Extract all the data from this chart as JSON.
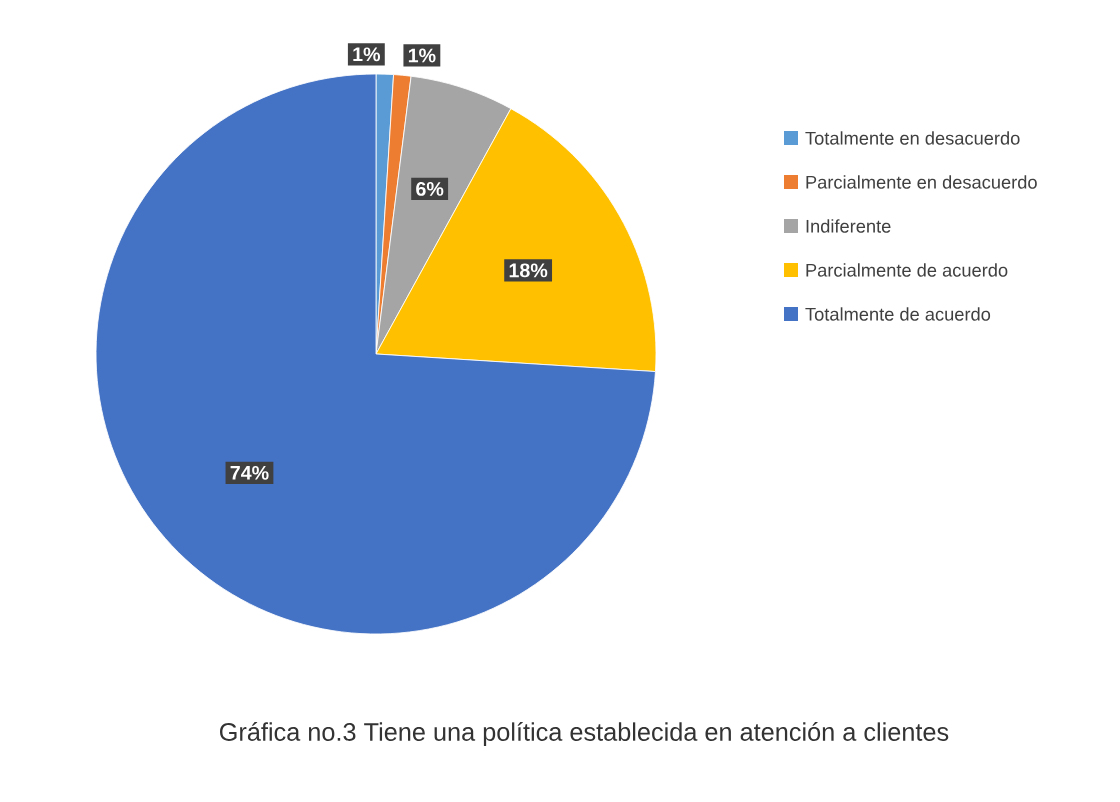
{
  "chart_data": {
    "type": "pie",
    "title": "Gráfica no.3 Tiene una política establecida en atención a clientes",
    "categories": [
      "Totalmente en desacuerdo",
      "Parcialmente en desacuerdo",
      "Indiferente",
      "Parcialmente de acuerdo",
      "Totalmente de acuerdo"
    ],
    "values": [
      1,
      1,
      6,
      18,
      74
    ],
    "value_labels": [
      "1%",
      "1%",
      "6%",
      "18%",
      "74%"
    ],
    "colors": [
      "#5b9bd5",
      "#ed7d31",
      "#a5a5a5",
      "#ffc000",
      "#4472c4"
    ],
    "legend": "right"
  }
}
